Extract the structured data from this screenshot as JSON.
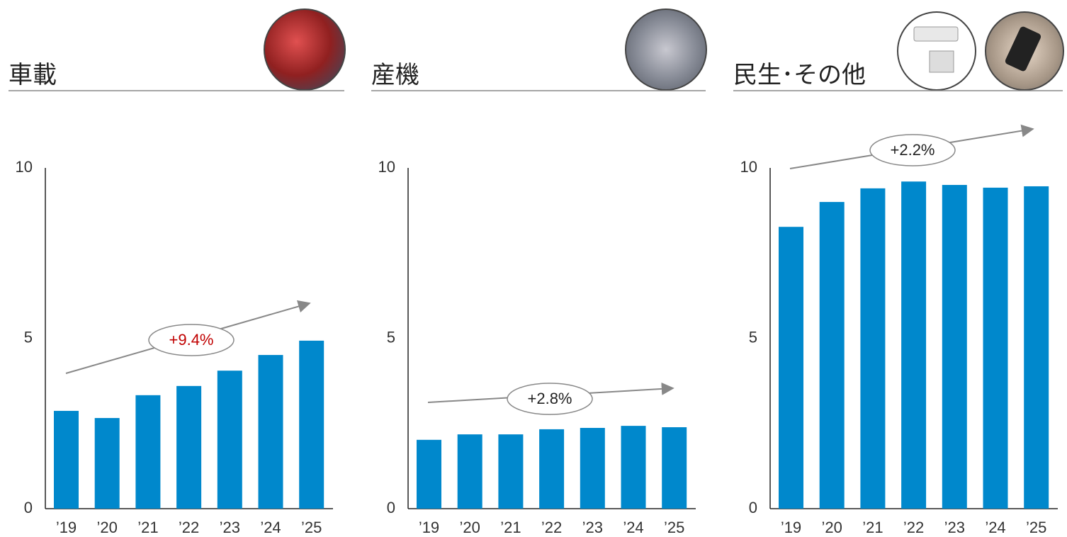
{
  "chart_data": [
    {
      "type": "bar",
      "title": "車載",
      "categories": [
        "’19",
        "’20",
        "’21",
        "’22",
        "’23",
        "’24",
        "’25"
      ],
      "values": [
        2.87,
        2.66,
        3.33,
        3.6,
        4.05,
        4.51,
        4.93
      ],
      "color": "#0088cc",
      "ylim": [
        0,
        10
      ],
      "yticks": [
        0,
        5,
        10
      ],
      "annotation": "+9.4%",
      "annotation_color": "#c00000"
    },
    {
      "type": "bar",
      "title": "産機",
      "categories": [
        "’19",
        "’20",
        "’21",
        "’22",
        "’23",
        "’24",
        "’25"
      ],
      "values": [
        2.02,
        2.18,
        2.18,
        2.33,
        2.37,
        2.43,
        2.39
      ],
      "color": "#0088cc",
      "ylim": [
        0,
        10
      ],
      "yticks": [
        0,
        5,
        10
      ],
      "annotation": "+2.8%",
      "annotation_color": "#222222"
    },
    {
      "type": "bar",
      "title": "民生･その他",
      "categories": [
        "’19",
        "’20",
        "’21",
        "’22",
        "’23",
        "’24",
        "’25"
      ],
      "values": [
        8.27,
        9.0,
        9.4,
        9.6,
        9.5,
        9.42,
        9.46
      ],
      "color": "#0088cc",
      "ylim": [
        0,
        10
      ],
      "yticks": [
        0,
        5,
        10
      ],
      "annotation": "+2.2%",
      "annotation_color": "#222222"
    }
  ]
}
